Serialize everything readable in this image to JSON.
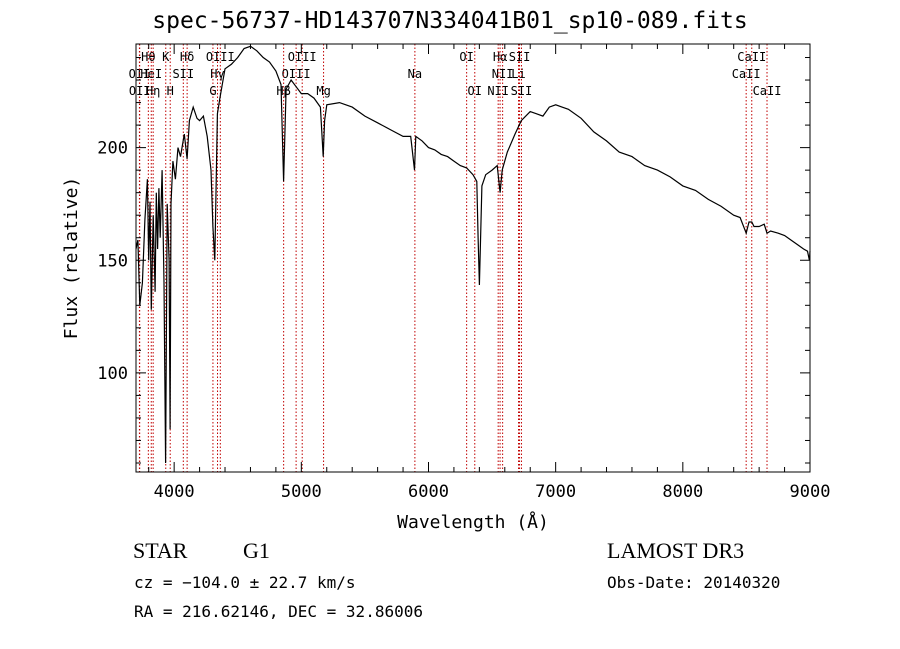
{
  "header": {
    "title": "spec-56737-HD143707N334041B01_sp10-089.fits"
  },
  "footer": {
    "object_type": "STAR",
    "subclass": "G1",
    "survey": "LAMOST DR3",
    "cz": "cz = −104.0 ± 22.7 km/s",
    "obs_date": "Obs-Date: 20140320",
    "ra_dec": "RA = 216.62146, DEC =  32.86006"
  },
  "chart_data": {
    "type": "line",
    "xlabel": "Wavelength (Å)",
    "ylabel": "Flux (relative)",
    "xlim": [
      3700,
      9000
    ],
    "ylim": [
      56,
      246
    ],
    "x_ticks": [
      4000,
      5000,
      6000,
      7000,
      8000,
      9000
    ],
    "y_ticks": [
      100,
      150,
      200
    ],
    "series": [
      {
        "x": [
          3700,
          3715,
          3730,
          3750,
          3770,
          3790,
          3800,
          3810,
          3820,
          3835,
          3850,
          3860,
          3870,
          3880,
          3890,
          3905,
          3920,
          3933,
          3945,
          3960,
          3968,
          3975,
          3990,
          4010,
          4030,
          4050,
          4080,
          4102,
          4120,
          4150,
          4180,
          4200,
          4230,
          4260,
          4290,
          4305,
          4320,
          4340,
          4360,
          4400,
          4450,
          4500,
          4550,
          4600,
          4650,
          4700,
          4750,
          4800,
          4840,
          4861,
          4880,
          4920,
          4960,
          5000,
          5050,
          5100,
          5150,
          5172,
          5183,
          5200,
          5300,
          5400,
          5500,
          5600,
          5700,
          5800,
          5860,
          5890,
          5900,
          5950,
          6000,
          6050,
          6100,
          6150,
          6200,
          6250,
          6300,
          6350,
          6380,
          6390,
          6400,
          6420,
          6450,
          6500,
          6540,
          6563,
          6580,
          6620,
          6680,
          6730,
          6800,
          6850,
          6900,
          6950,
          7000,
          7050,
          7100,
          7200,
          7300,
          7400,
          7500,
          7600,
          7700,
          7800,
          7900,
          8000,
          8100,
          8200,
          8300,
          8400,
          8450,
          8498,
          8520,
          8542,
          8560,
          8600,
          8640,
          8662,
          8690,
          8750,
          8800,
          8850,
          8900,
          8950,
          8980,
          8995,
          9000
        ],
        "y": [
          155,
          159,
          130,
          140,
          168,
          186,
          150,
          176,
          128,
          170,
          136,
          180,
          155,
          182,
          160,
          190,
          140,
          60,
          175,
          150,
          75,
          175,
          194,
          186,
          200,
          196,
          206,
          195,
          212,
          218,
          213,
          212,
          214,
          205,
          190,
          165,
          150,
          215,
          222,
          235,
          237,
          240,
          244,
          245,
          243,
          240,
          238,
          234,
          228,
          185,
          226,
          230,
          227,
          224,
          224,
          222,
          218,
          196,
          212,
          219,
          220,
          218,
          214,
          211,
          208,
          205,
          205,
          190,
          205,
          203,
          200,
          199,
          197,
          196,
          194,
          192,
          191,
          188,
          185,
          160,
          139,
          183,
          188,
          190,
          192,
          180,
          190,
          198,
          206,
          212,
          216,
          215,
          214,
          218,
          219,
          218,
          217,
          213,
          207,
          203,
          198,
          196,
          192,
          190,
          187,
          183,
          181,
          177,
          174,
          170,
          169,
          162,
          167,
          167,
          165,
          165,
          166,
          162,
          163,
          162,
          161,
          159,
          157,
          155,
          154,
          150,
          154
        ]
      }
    ],
    "lines": [
      {
        "label": "Hθ",
        "x": 3797,
        "row": 1
      },
      {
        "label": "OII",
        "x": 3727,
        "row": 2
      },
      {
        "label": "OII",
        "x": 3729,
        "row": 3
      },
      {
        "label": "K",
        "x": 3934,
        "row": 1
      },
      {
        "label": "HeI",
        "x": 3820,
        "row": 2
      },
      {
        "label": "Hη",
        "x": 3835,
        "row": 3
      },
      {
        "label": "SII",
        "x": 4072,
        "row": 2
      },
      {
        "label": "H",
        "x": 3969,
        "row": 3
      },
      {
        "label": "Hδ",
        "x": 4102,
        "row": 1
      },
      {
        "label": "OIII",
        "x": 4363,
        "row": 1
      },
      {
        "label": "Hγ",
        "x": 4341,
        "row": 2
      },
      {
        "label": "G",
        "x": 4305,
        "row": 3
      },
      {
        "label": "OIII",
        "x": 5007,
        "row": 1
      },
      {
        "label": "OIII",
        "x": 4959,
        "row": 2
      },
      {
        "label": "Hβ",
        "x": 4861,
        "row": 3
      },
      {
        "label": "Mg",
        "x": 5175,
        "row": 3
      },
      {
        "label": "Na",
        "x": 5893,
        "row": 2
      },
      {
        "label": "OI",
        "x": 6300,
        "row": 1
      },
      {
        "label": "OI",
        "x": 6364,
        "row": 3
      },
      {
        "label": "Hα",
        "x": 6563,
        "row": 1
      },
      {
        "label": "SII",
        "x": 6716,
        "row": 1
      },
      {
        "label": "NII",
        "x": 6583,
        "row": 2
      },
      {
        "label": "Li",
        "x": 6708,
        "row": 2
      },
      {
        "label": "NII",
        "x": 6548,
        "row": 3
      },
      {
        "label": "SII",
        "x": 6731,
        "row": 3
      },
      {
        "label": "CaII",
        "x": 8542,
        "row": 1
      },
      {
        "label": "CaII",
        "x": 8498,
        "row": 2
      },
      {
        "label": "CaII",
        "x": 8662,
        "row": 3
      }
    ],
    "colors": {
      "spectrum": "#000000",
      "line_markers": "#c00000"
    }
  }
}
